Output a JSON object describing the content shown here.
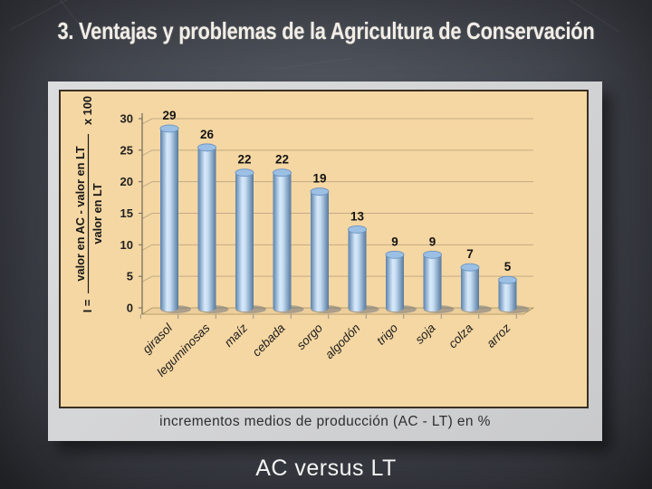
{
  "slide": {
    "title": "3. Ventajas y problemas de la Agricultura de Conservación",
    "subtitle": "AC versus LT",
    "background_color": "#4a4e56",
    "title_color": "#f2eee7"
  },
  "figure": {
    "caption": "incrementos medios de producción (AC - LT) en %",
    "frame_color": "#d3d4d6",
    "panel_color": "#f5d7a3",
    "panel_border_color": "#3a2f22"
  },
  "chart_data": {
    "type": "bar",
    "style": "3d-cylinder-columns",
    "title": "",
    "categories": [
      "girasol",
      "leguminosas",
      "maíz",
      "cebada",
      "sorgo",
      "algodón",
      "trigo",
      "soja",
      "colza",
      "arroz"
    ],
    "values": [
      29,
      26,
      22,
      22,
      19,
      13,
      9,
      9,
      7,
      5
    ],
    "xlabel": "",
    "ylabel_formula": {
      "lhs": "I =",
      "numerator": "valor en AC - valor en LT",
      "denominator": "valor en LT",
      "multiplier": "x 100"
    },
    "yticks": [
      0,
      5,
      10,
      15,
      20,
      25,
      30
    ],
    "ylim": [
      0,
      30
    ],
    "grid": true,
    "legend": "none",
    "value_labels": true,
    "colors": {
      "bar_edge": "#5a82ad",
      "bar_center": "#d7e9fa",
      "bar_top": "#9cc0e4",
      "gridline": "#c2ab83",
      "value_label": "#141414",
      "category_label": "#1c1c1c"
    }
  }
}
